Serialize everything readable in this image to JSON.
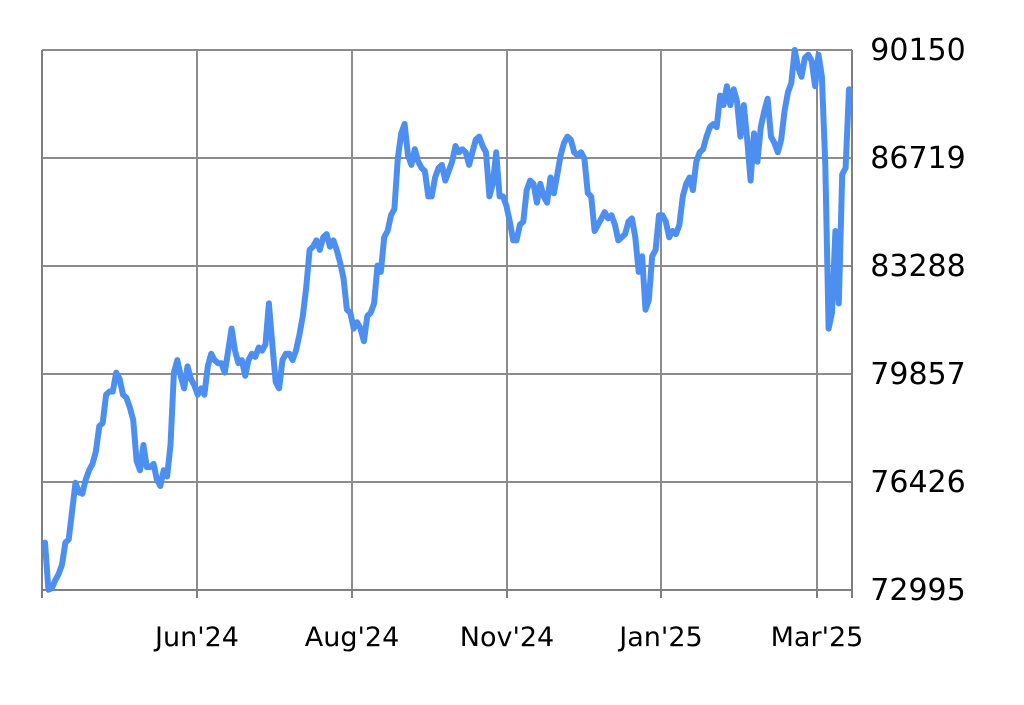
{
  "chart_data": {
    "type": "line",
    "title": "",
    "xlabel": "",
    "ylabel": "",
    "ylim": [
      72995,
      90150
    ],
    "y_ticks": [
      "90150",
      "86719",
      "83288",
      "79857",
      "76426",
      "72995"
    ],
    "y_axis_side": "right",
    "x_ticks": [
      "Jun'24",
      "Aug'24",
      "Nov'24",
      "Jan'25",
      "Mar'25"
    ],
    "grid": true,
    "legend": "none",
    "colors": {
      "line": "#4c8ff0",
      "grid": "#8c8c8c",
      "axis": "#7f7f7f"
    },
    "series": [
      {
        "values": [
          74500,
          73000,
          73050,
          73300,
          73500,
          73800,
          74500,
          74600,
          75500,
          76400,
          76100,
          76050,
          76500,
          76800,
          77000,
          77400,
          78200,
          78300,
          79200,
          79300,
          79300,
          79900,
          79700,
          79200,
          79100,
          78800,
          78400,
          77100,
          76800,
          77600,
          76900,
          76900,
          77000,
          76500,
          76300,
          76800,
          76600,
          77600,
          79900,
          80300,
          79800,
          79400,
          80100,
          79700,
          79500,
          79200,
          79400,
          79200,
          80100,
          80500,
          80300,
          80200,
          80200,
          79900,
          80600,
          81300,
          80600,
          80200,
          80300,
          79800,
          80300,
          80500,
          80400,
          80700,
          80600,
          80800,
          82100,
          80800,
          79600,
          79400,
          80300,
          80500,
          80500,
          80300,
          80600,
          81100,
          81700,
          82600,
          83800,
          83900,
          84100,
          83800,
          84200,
          84300,
          83900,
          84100,
          83800,
          83400,
          82900,
          81900,
          81800,
          81300,
          81500,
          81300,
          80900,
          81700,
          81800,
          82100,
          83300,
          83100,
          84200,
          84400,
          84900,
          85100,
          86700,
          87500,
          87800,
          86800,
          86500,
          87000,
          86600,
          86400,
          86300,
          85500,
          85500,
          86100,
          86400,
          86500,
          86000,
          86300,
          86600,
          87100,
          86900,
          87000,
          86900,
          86500,
          86900,
          87300,
          87400,
          87100,
          86900,
          85500,
          85900,
          86900,
          85500,
          85500,
          85200,
          84700,
          84100,
          84100,
          84600,
          84700,
          85700,
          86000,
          85900,
          85300,
          85900,
          85500,
          85300,
          86100,
          85600,
          86200,
          86800,
          87200,
          87400,
          87300,
          86900,
          86800,
          86900,
          86700,
          85600,
          85500,
          84400,
          84600,
          84800,
          85000,
          84800,
          84900,
          84600,
          84100,
          84200,
          84300,
          84700,
          84800,
          84200,
          83100,
          83600,
          81900,
          82200,
          83600,
          83800,
          84900,
          84900,
          84700,
          84200,
          84400,
          84300,
          84600,
          85500,
          85900,
          86100,
          85700,
          86600,
          86900,
          87000,
          87400,
          87700,
          87800,
          87700,
          88700,
          88400,
          89000,
          88400,
          88900,
          88500,
          87400,
          88400,
          87300,
          86000,
          87500,
          86600,
          87700,
          88200,
          88600,
          87400,
          87200,
          86900,
          87300,
          88200,
          88800,
          89100,
          90150,
          89600,
          89300,
          89900,
          90000,
          89800,
          89000,
          90000,
          89300,
          86500,
          81300,
          81800,
          84400,
          82100,
          86200,
          86400,
          88900
        ]
      }
    ]
  }
}
